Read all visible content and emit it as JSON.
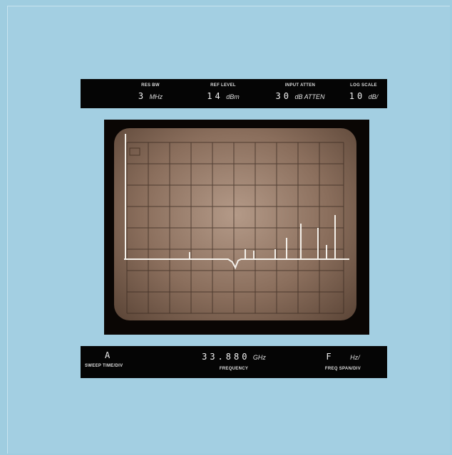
{
  "top_panel": {
    "res_bw": {
      "label": "RES BW",
      "value": "3",
      "unit": "MHz"
    },
    "ref_level": {
      "label": "REF LEVEL",
      "value": "14",
      "unit": "dBm"
    },
    "input_atten": {
      "label": "INPUT ATTEN",
      "value": "30",
      "unit": "dB ATTEN"
    },
    "log_scale": {
      "label": "LOG SCALE",
      "value": "10",
      "unit": "dB/"
    }
  },
  "bottom_panel": {
    "sweep": {
      "value": "A",
      "label": "SWEEP TIME/DIV"
    },
    "frequency": {
      "value": "33.880",
      "unit": "GHz",
      "label": "FREQUENCY"
    },
    "span": {
      "value": "F",
      "unit": "Hz/",
      "label": "FREQ SPAN/DIV"
    }
  }
}
